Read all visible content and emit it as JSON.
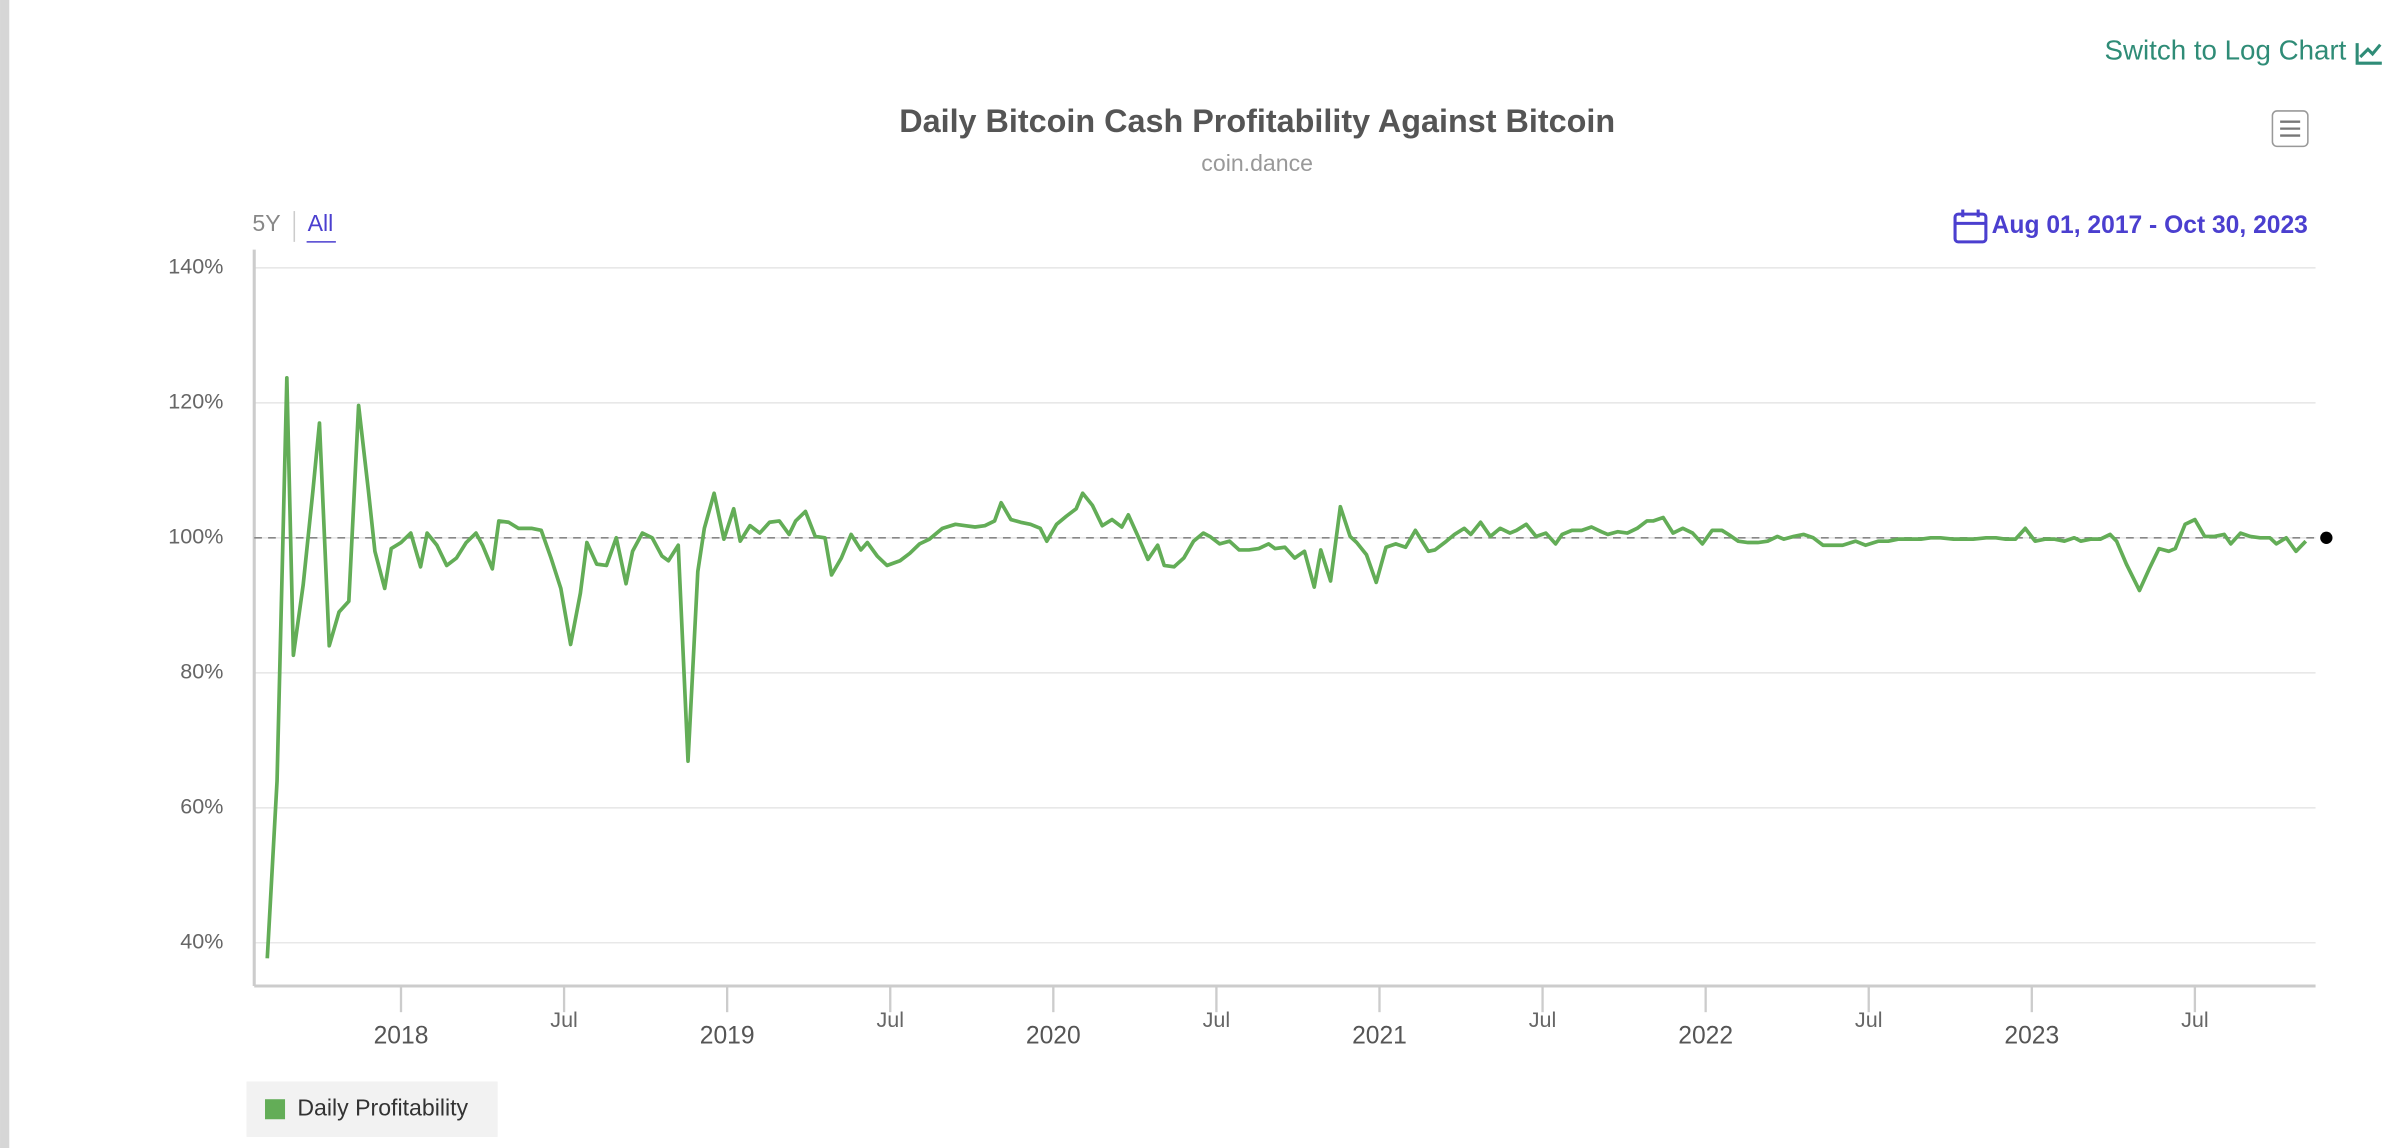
{
  "chart_data": {
    "type": "line",
    "title": "Daily Bitcoin Cash Profitability Against Bitcoin",
    "subtitle": "coin.dance",
    "log_toggle": "Switch to Log Chart",
    "range_buttons": [
      "5Y",
      "All"
    ],
    "date_range": "Aug 01, 2017 - Oct 30, 2023",
    "x": [
      2017.59,
      2017.62,
      2017.65,
      2017.67,
      2017.7,
      2017.73,
      2017.75,
      2017.78,
      2017.81,
      2017.84,
      2017.87,
      2017.9,
      2017.92,
      2017.95,
      2017.97,
      2018.0,
      2018.03,
      2018.06,
      2018.08,
      2018.11,
      2018.14,
      2018.17,
      2018.2,
      2018.23,
      2018.25,
      2018.28,
      2018.3,
      2018.33,
      2018.36,
      2018.4,
      2018.43,
      2018.46,
      2018.49,
      2018.52,
      2018.55,
      2018.57,
      2018.6,
      2018.63,
      2018.66,
      2018.69,
      2018.71,
      2018.74,
      2018.77,
      2018.8,
      2018.82,
      2018.85,
      2018.88,
      2018.91,
      2018.93,
      2018.96,
      2018.99,
      2019.02,
      2019.04,
      2019.07,
      2019.1,
      2019.13,
      2019.16,
      2019.19,
      2019.21,
      2019.24,
      2019.27,
      2019.3,
      2019.32,
      2019.35,
      2019.38,
      2019.41,
      2019.43,
      2019.46,
      2019.49,
      2019.53,
      2019.56,
      2019.59,
      2019.62,
      2019.66,
      2019.7,
      2019.73,
      2019.76,
      2019.79,
      2019.82,
      2019.84,
      2019.87,
      2019.9,
      2019.93,
      2019.96,
      2019.98,
      2020.01,
      2020.04,
      2020.07,
      2020.09,
      2020.12,
      2020.15,
      2020.18,
      2020.21,
      2020.23,
      2020.26,
      2020.29,
      2020.32,
      2020.34,
      2020.37,
      2020.4,
      2020.43,
      2020.46,
      2020.48,
      2020.51,
      2020.54,
      2020.57,
      2020.6,
      2020.63,
      2020.66,
      2020.68,
      2020.71,
      2020.74,
      2020.77,
      2020.8,
      2020.82,
      2020.85,
      2020.88,
      2020.91,
      2020.93,
      2020.96,
      2020.99,
      2021.02,
      2021.05,
      2021.08,
      2021.11,
      2021.15,
      2021.17,
      2021.2,
      2021.23,
      2021.26,
      2021.28,
      2021.31,
      2021.34,
      2021.37,
      2021.4,
      2021.42,
      2021.45,
      2021.48,
      2021.51,
      2021.54,
      2021.56,
      2021.59,
      2021.62,
      2021.65,
      2021.68,
      2021.7,
      2021.73,
      2021.76,
      2021.79,
      2021.82,
      2021.84,
      2021.87,
      2021.9,
      2021.93,
      2021.96,
      2021.99,
      2022.02,
      2022.05,
      2022.07,
      2022.1,
      2022.13,
      2022.16,
      2022.19,
      2022.22,
      2022.24,
      2022.27,
      2022.3,
      2022.33,
      2022.36,
      2022.39,
      2022.42,
      2022.46,
      2022.49,
      2022.53,
      2022.56,
      2022.59,
      2022.62,
      2022.66,
      2022.69,
      2022.72,
      2022.76,
      2022.79,
      2022.82,
      2022.86,
      2022.89,
      2022.92,
      2022.95,
      2022.98,
      2023.01,
      2023.04,
      2023.07,
      2023.1,
      2023.13,
      2023.15,
      2023.18,
      2023.21,
      2023.24,
      2023.26,
      2023.29,
      2023.33,
      2023.36,
      2023.39,
      2023.42,
      2023.44,
      2023.47,
      2023.5,
      2023.53,
      2023.56,
      2023.59,
      2023.61,
      2023.64,
      2023.67,
      2023.7,
      2023.73,
      2023.75,
      2023.78,
      2023.81,
      2023.84
    ],
    "series": [
      {
        "name": "Daily Profitability",
        "color": "#63ad57",
        "values": [
          37.7,
          64,
          123.7,
          82.6,
          93,
          107,
          117,
          84,
          89,
          90.6,
          119.6,
          107,
          98,
          92.5,
          98.4,
          99.3,
          100.7,
          95.7,
          100.7,
          98.9,
          95.9,
          97,
          99.3,
          100.7,
          98.9,
          95.4,
          102.5,
          102.3,
          101.4,
          101.4,
          101.1,
          97,
          92.5,
          84.2,
          91.8,
          99.3,
          96.1,
          95.9,
          100,
          93.2,
          98,
          100.7,
          100,
          97.3,
          96.6,
          98.9,
          66.9,
          95,
          101.4,
          106.6,
          99.8,
          104.3,
          99.5,
          101.8,
          100.7,
          102.3,
          102.5,
          100.5,
          102.5,
          103.9,
          100.2,
          100,
          94.5,
          97,
          100.5,
          98.2,
          99.3,
          97.3,
          95.9,
          96.6,
          97.7,
          99.1,
          99.8,
          101.4,
          102,
          101.8,
          101.6,
          101.8,
          102.5,
          105.2,
          102.7,
          102.3,
          102,
          101.4,
          99.5,
          102,
          103.2,
          104.3,
          106.6,
          104.8,
          101.8,
          102.7,
          101.6,
          103.4,
          100.2,
          96.8,
          98.9,
          95.9,
          95.7,
          97,
          99.5,
          100.7,
          100.2,
          99.1,
          99.5,
          98.2,
          98.2,
          98.4,
          99.1,
          98.4,
          98.6,
          97,
          98,
          92.7,
          98.2,
          93.6,
          104.6,
          100.2,
          99.3,
          97.5,
          93.4,
          98.6,
          99.1,
          98.6,
          101.1,
          98,
          98.2,
          99.3,
          100.5,
          101.4,
          100.5,
          102.3,
          100.2,
          101.4,
          100.7,
          101.1,
          102,
          100.2,
          100.7,
          99.1,
          100.5,
          101.1,
          101.1,
          101.6,
          100.9,
          100.5,
          100.9,
          100.7,
          101.4,
          102.5,
          102.5,
          103,
          100.7,
          101.4,
          100.7,
          99.1,
          101.1,
          101.1,
          100.5,
          99.5,
          99.3,
          99.3,
          99.5,
          100.2,
          99.8,
          100.2,
          100.5,
          100,
          98.9,
          98.9,
          98.9,
          99.5,
          98.9,
          99.5,
          99.5,
          99.8,
          99.8,
          99.8,
          100,
          100,
          99.8,
          99.8,
          99.8,
          100,
          100,
          99.8,
          99.8,
          101.4,
          99.5,
          99.8,
          99.8,
          99.5,
          100,
          99.5,
          99.8,
          99.8,
          100.5,
          99.5,
          96.1,
          92.2,
          95.4,
          98.4,
          98,
          98.4,
          102,
          102.7,
          100.2,
          100.2,
          100.5,
          99.1,
          100.7,
          100.2,
          100,
          100,
          99.1,
          100,
          98,
          99.5
        ]
      }
    ],
    "reference_line": 100,
    "xlim": [
      2017.55,
      2023.87
    ],
    "xticks": [
      2018,
      {
        "value": 2018.5,
        "label": "Jul"
      },
      2019,
      {
        "value": 2019.5,
        "label": "Jul"
      },
      2020,
      {
        "value": 2020.5,
        "label": "Jul"
      },
      2021,
      {
        "value": 2021.5,
        "label": "Jul"
      },
      2022,
      {
        "value": 2022.5,
        "label": "Jul"
      },
      2023,
      {
        "value": 2023.5,
        "label": "Jul"
      }
    ],
    "ylim": [
      33.6,
      142.7
    ],
    "yticks": [
      {
        "value": 40,
        "label": "40%"
      },
      {
        "value": 60,
        "label": "60%"
      },
      {
        "value": 80,
        "label": "80%"
      },
      {
        "value": 100,
        "label": "100%"
      },
      {
        "value": 120,
        "label": "120%"
      },
      {
        "value": 140,
        "label": "140%"
      }
    ],
    "grid": true,
    "legend": "bottom-left"
  }
}
